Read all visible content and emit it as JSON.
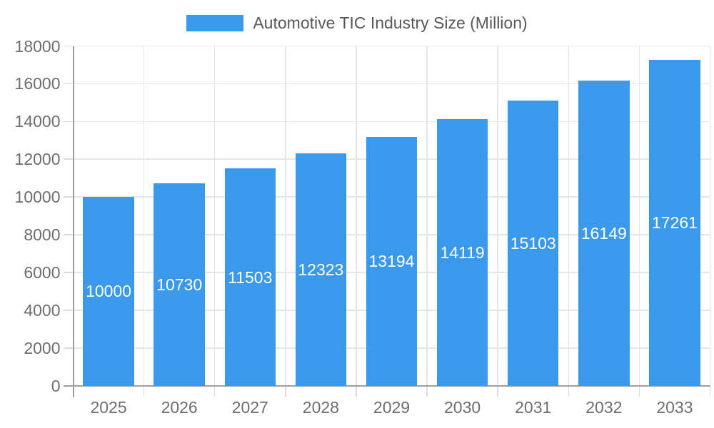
{
  "chart_data": {
    "type": "bar",
    "title": "Automotive TIC Industry Size (Million)",
    "legend": {
      "position": "top",
      "label": "Automotive TIC Industry Size (Million)"
    },
    "categories": [
      "2025",
      "2026",
      "2027",
      "2028",
      "2029",
      "2030",
      "2031",
      "2032",
      "2033"
    ],
    "series": [
      {
        "name": "Automotive TIC Industry Size (Million)",
        "values": [
          10000,
          10730,
          11503,
          12323,
          13194,
          14119,
          15103,
          16149,
          17261
        ]
      }
    ],
    "value_labels_shown": true,
    "xlabel": "",
    "ylabel": "",
    "ylim": [
      0,
      18000
    ],
    "yticks": [
      0,
      2000,
      4000,
      6000,
      8000,
      10000,
      12000,
      14000,
      16000,
      18000
    ],
    "grid": true,
    "colors": {
      "bar": "#3B99EC",
      "value_label": "#FFFFFF",
      "axis_label": "#6E6E6E",
      "legend_label": "#58595B",
      "grid_line": "#E6E6E6",
      "tick_line": "#DCDCDC",
      "axis_line": "#9E9E9E",
      "background": "#FFFFFF"
    }
  }
}
